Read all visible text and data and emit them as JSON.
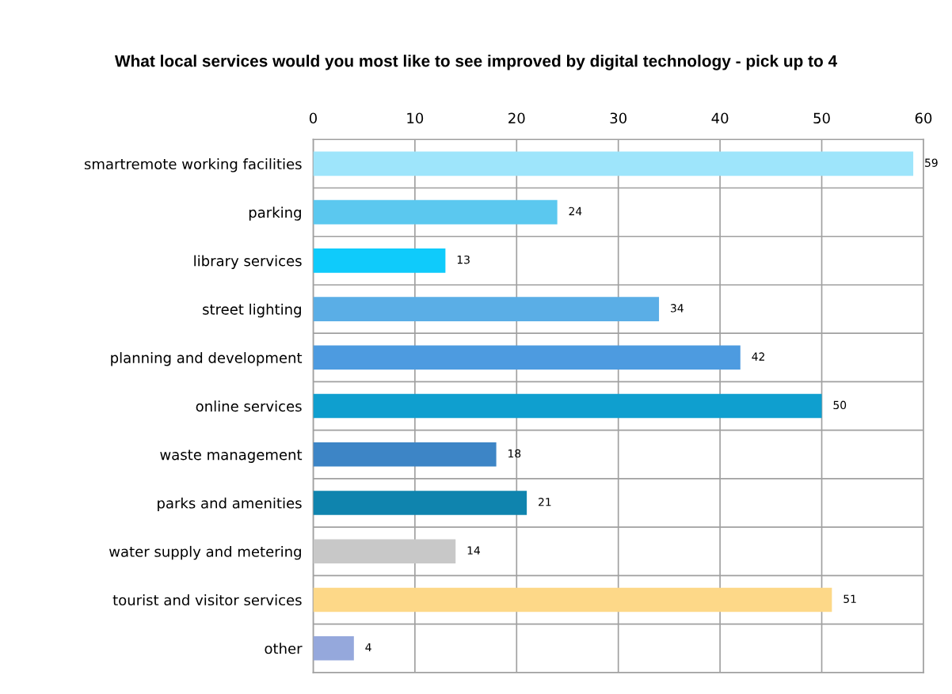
{
  "chart_data": {
    "type": "bar",
    "orientation": "horizontal",
    "title": "What local services would you most like to see improved by digital technology - pick up to 4",
    "categories": [
      "smartremote working facilities",
      "parking",
      "library services",
      "street lighting",
      "planning and development",
      "online services",
      "waste management",
      "parks and amenities",
      "water supply and metering",
      "tourist and visitor services",
      "other"
    ],
    "values": [
      59,
      24,
      13,
      34,
      42,
      50,
      18,
      21,
      14,
      51,
      4
    ],
    "colors": [
      "#9ee5fb",
      "#5bc8ef",
      "#0fcbfb",
      "#5aaee6",
      "#4d9be0",
      "#0f9fcf",
      "#3d85c6",
      "#0f84ae",
      "#c8c8c8",
      "#fdd888",
      "#95a8dc"
    ],
    "xlim": [
      0,
      60
    ],
    "xticks": [
      0,
      10,
      20,
      30,
      40,
      50,
      60
    ],
    "grid": true,
    "data_labels": true,
    "legend": false
  }
}
